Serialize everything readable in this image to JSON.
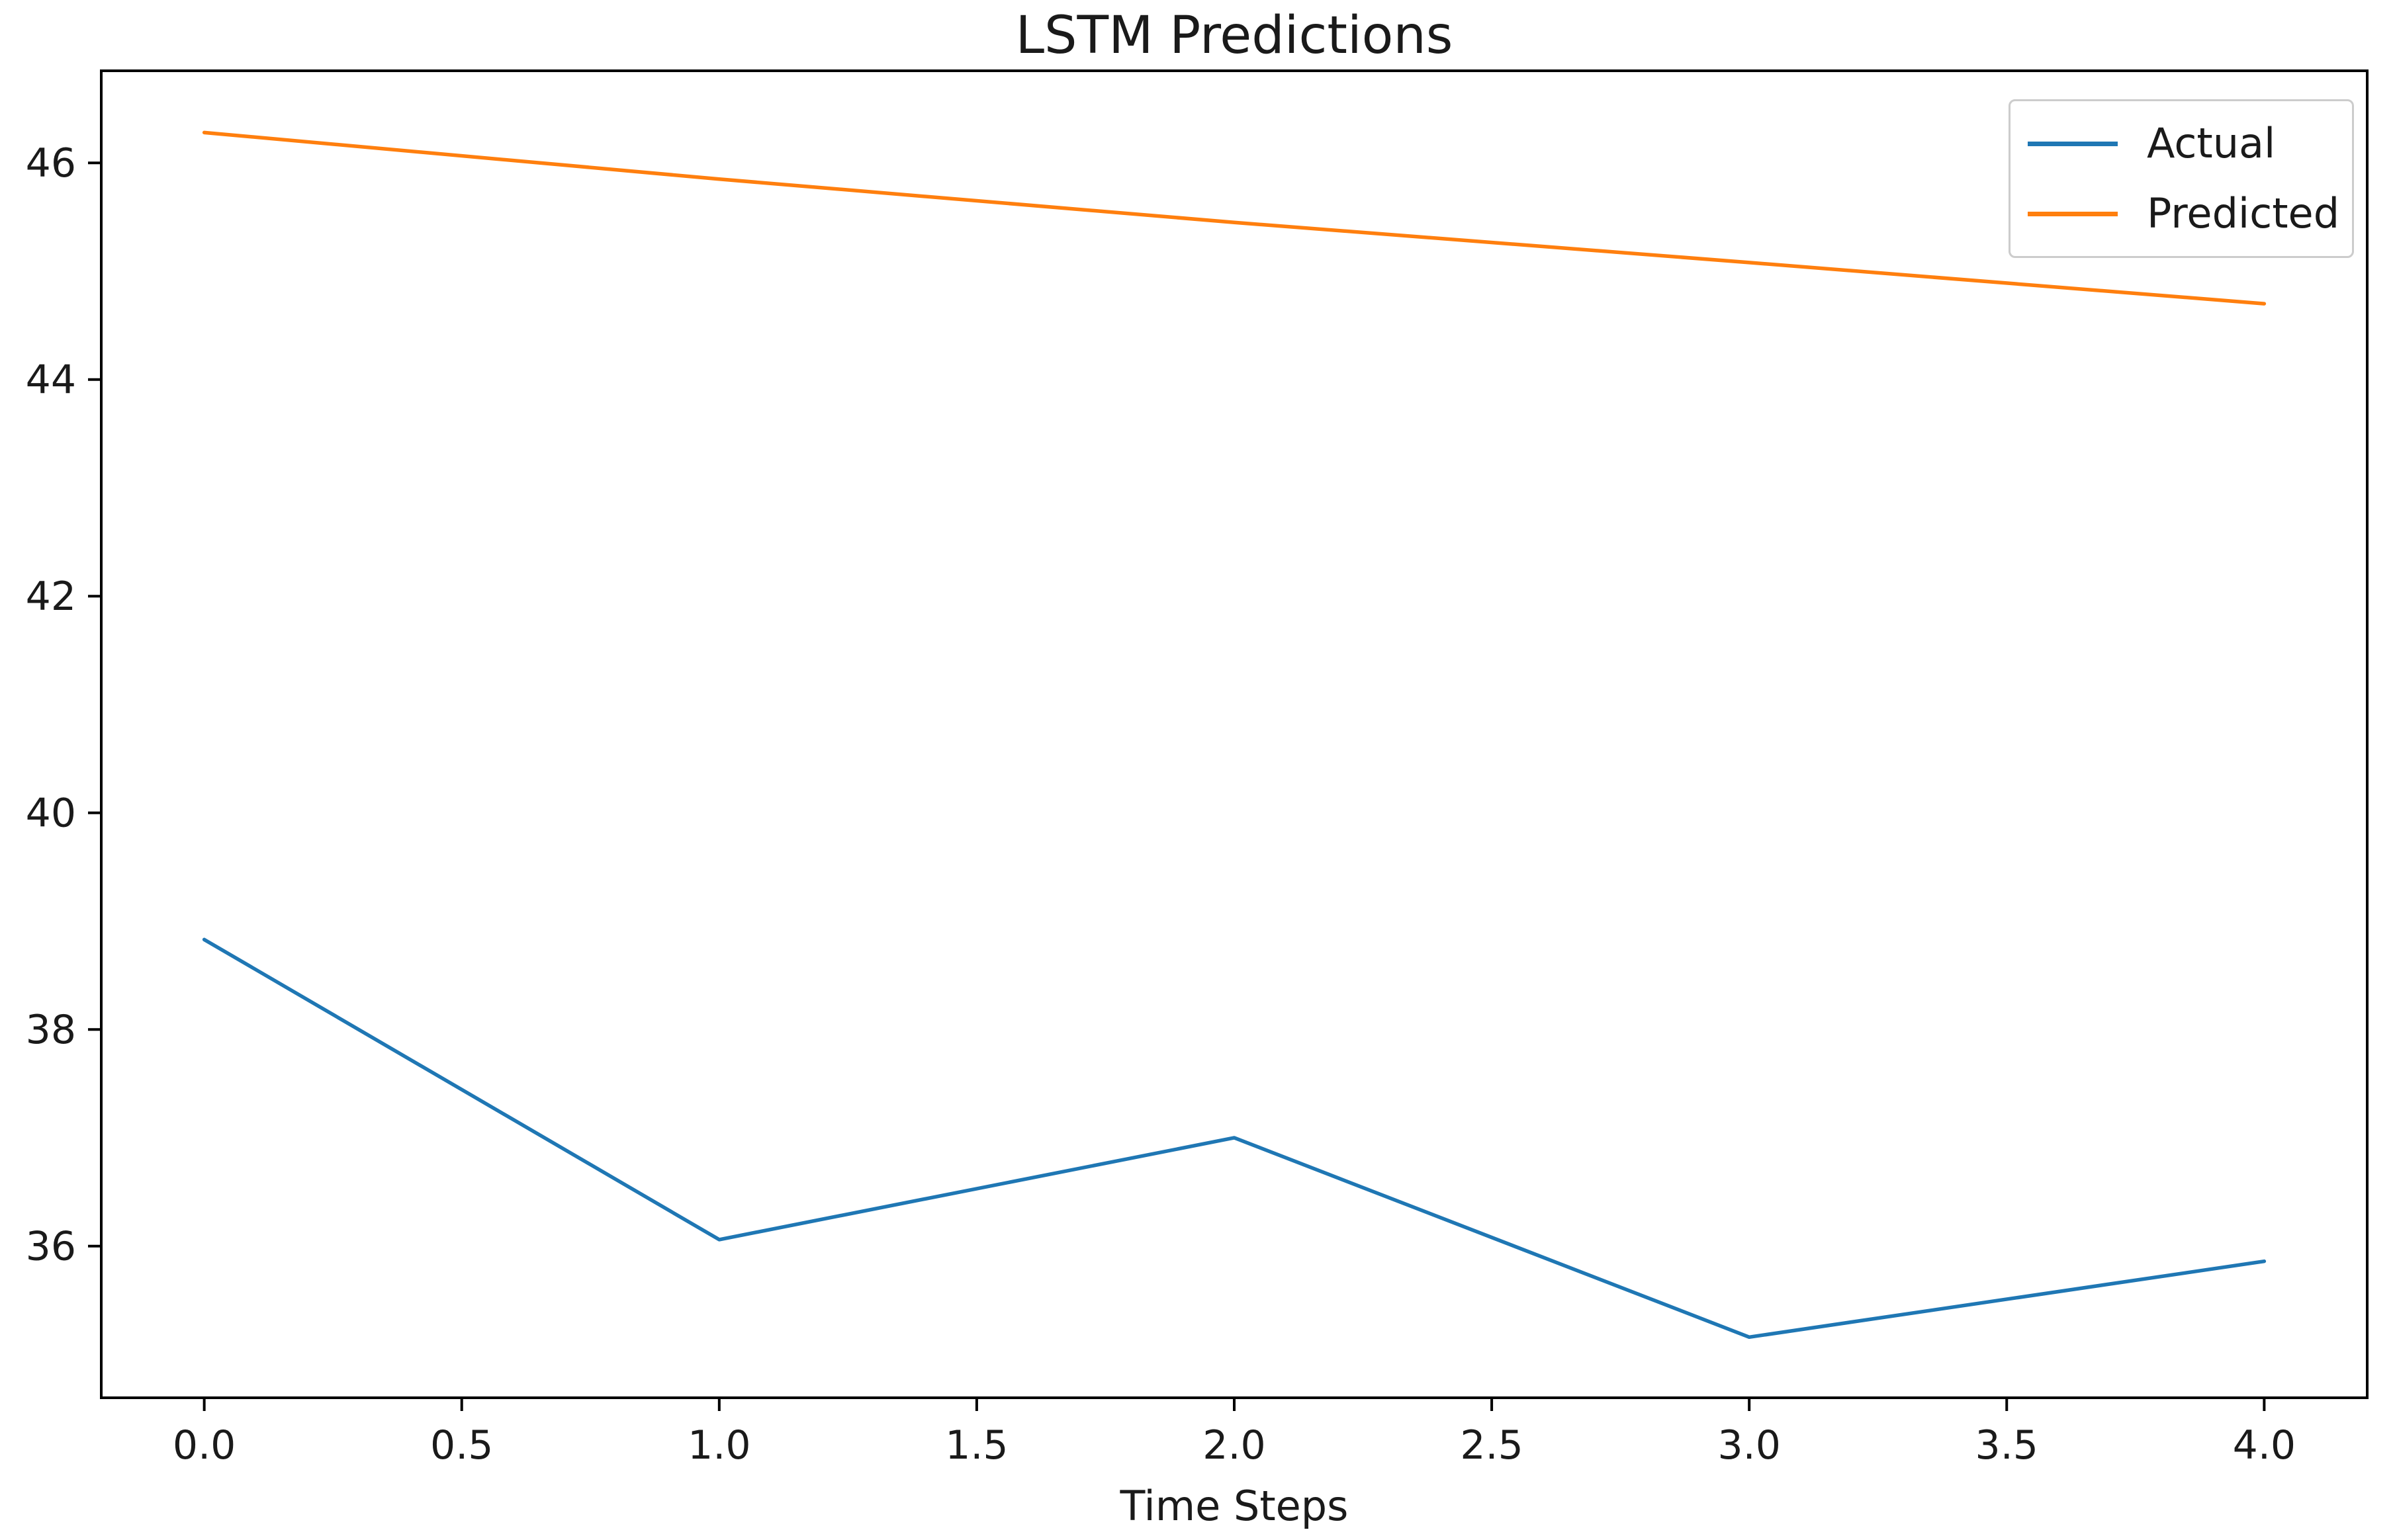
{
  "figure": {
    "background": "#ffffff",
    "text_color": "#1a1a1a",
    "axis_color": "#000000",
    "legend_border_color": "#cccccc"
  },
  "chart_data": {
    "type": "line",
    "title": "LSTM Predictions",
    "xlabel": "Time Steps",
    "ylabel": "",
    "x": [
      0,
      1,
      2,
      3,
      4
    ],
    "series": [
      {
        "name": "Actual",
        "color": "#1f77b4",
        "values": [
          38.83,
          36.06,
          37.0,
          35.16,
          35.86
        ]
      },
      {
        "name": "Predicted",
        "color": "#ff7f0e",
        "values": [
          46.28,
          45.85,
          45.45,
          45.08,
          44.7
        ]
      }
    ],
    "xlim": [
      -0.2,
      4.2
    ],
    "ylim": [
      34.6,
      46.85
    ],
    "x_ticks": [
      0.0,
      0.5,
      1.0,
      1.5,
      2.0,
      2.5,
      3.0,
      3.5,
      4.0
    ],
    "x_tick_labels": [
      "0.0",
      "0.5",
      "1.0",
      "1.5",
      "2.0",
      "2.5",
      "3.0",
      "3.5",
      "4.0"
    ],
    "y_ticks": [
      36,
      38,
      40,
      42,
      44,
      46
    ],
    "y_tick_labels": [
      "36",
      "38",
      "40",
      "42",
      "44",
      "46"
    ],
    "grid": false,
    "legend_position": "upper right"
  },
  "legend": {
    "items": [
      {
        "label": "Actual",
        "color": "#1f77b4"
      },
      {
        "label": "Predicted",
        "color": "#ff7f0e"
      }
    ]
  }
}
